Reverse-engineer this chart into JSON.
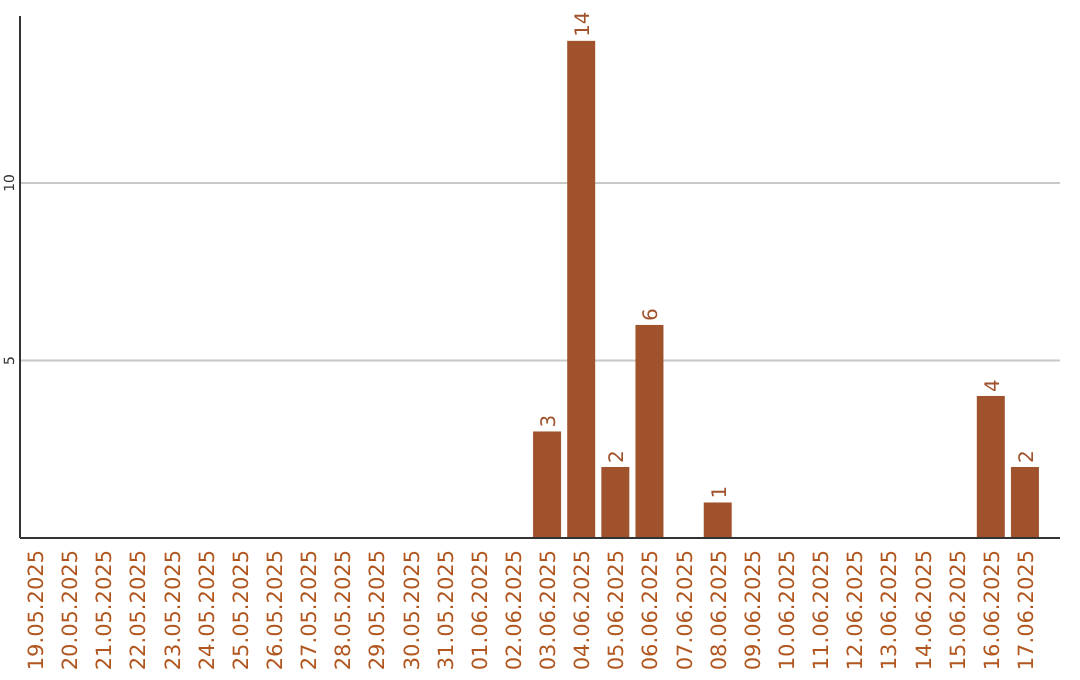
{
  "chart_data": {
    "type": "bar",
    "categories": [
      "19.05.2025",
      "20.05.2025",
      "21.05.2025",
      "22.05.2025",
      "23.05.2025",
      "24.05.2025",
      "25.05.2025",
      "26.05.2025",
      "27.05.2025",
      "28.05.2025",
      "29.05.2025",
      "30.05.2025",
      "31.05.2025",
      "01.06.2025",
      "02.06.2025",
      "03.06.2025",
      "04.06.2025",
      "05.06.2025",
      "06.06.2025",
      "07.06.2025",
      "08.06.2025",
      "09.06.2025",
      "10.06.2025",
      "11.06.2025",
      "12.06.2025",
      "13.06.2025",
      "14.06.2025",
      "15.06.2025",
      "16.06.2025",
      "17.06.2025"
    ],
    "values": [
      0,
      0,
      0,
      0,
      0,
      0,
      0,
      0,
      0,
      0,
      0,
      0,
      0,
      0,
      0,
      3,
      14,
      2,
      6,
      0,
      1,
      0,
      0,
      0,
      0,
      0,
      0,
      0,
      4,
      2
    ],
    "value_labels": [
      null,
      null,
      null,
      null,
      null,
      null,
      null,
      null,
      null,
      null,
      null,
      null,
      null,
      null,
      null,
      "3",
      "14",
      "2",
      "6",
      null,
      "1",
      null,
      null,
      null,
      null,
      null,
      null,
      null,
      "4",
      "2"
    ],
    "color": "#a0522d",
    "ylim": [
      0,
      14.7
    ],
    "yticks": [
      5,
      10
    ],
    "grid": "y"
  }
}
